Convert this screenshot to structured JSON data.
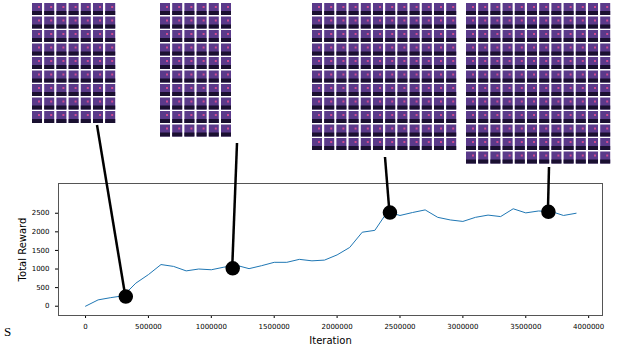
{
  "chart_data": {
    "type": "line",
    "x_label": "Iteration",
    "y_label": "Total Reward",
    "annotation": "S",
    "color": "#1f77b4",
    "x": [
      0,
      100000,
      200000,
      300000,
      400000,
      500000,
      600000,
      700000,
      800000,
      900000,
      1000000,
      1100000,
      1200000,
      1300000,
      1400000,
      1500000,
      1600000,
      1700000,
      1800000,
      1900000,
      2000000,
      2100000,
      2200000,
      2300000,
      2400000,
      2500000,
      2600000,
      2700000,
      2800000,
      2900000,
      3000000,
      3100000,
      3200000,
      3300000,
      3400000,
      3500000,
      3600000,
      3700000,
      3800000,
      3900000
    ],
    "values": [
      0,
      170,
      230,
      280,
      620,
      850,
      1120,
      1070,
      950,
      1000,
      980,
      1050,
      1100,
      1010,
      1090,
      1180,
      1180,
      1260,
      1220,
      1240,
      1380,
      1580,
      1990,
      2040,
      2540,
      2440,
      2520,
      2590,
      2390,
      2320,
      2280,
      2390,
      2450,
      2410,
      2620,
      2510,
      2560,
      2550,
      2440,
      2500
    ],
    "highlights": {
      "x": [
        320000,
        1170000,
        2420000,
        3680000
      ],
      "y": [
        260,
        1020,
        2520,
        2540
      ]
    },
    "xlim": [
      -215000,
      4110000
    ],
    "ylim": [
      -250,
      3300
    ],
    "xticks": [
      0,
      500000,
      1000000,
      1500000,
      2000000,
      2500000,
      3000000,
      3500000,
      4000000
    ],
    "yticks": [
      0,
      500,
      1000,
      1500,
      2000,
      2500
    ],
    "grid": false
  }
}
